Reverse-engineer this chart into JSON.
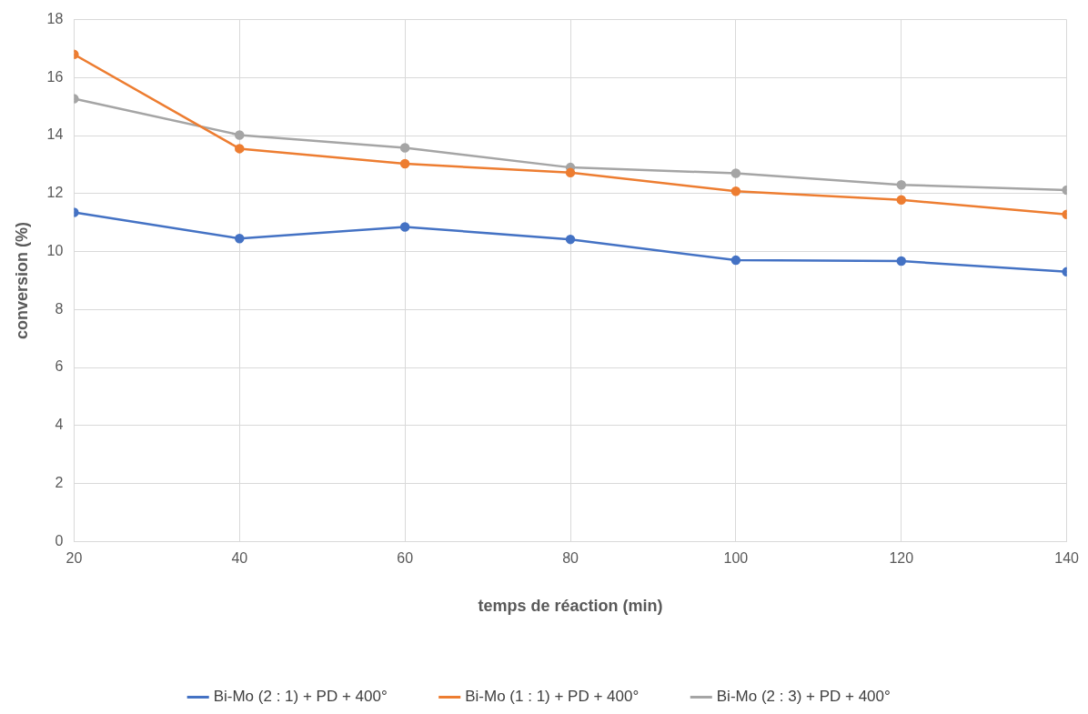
{
  "chart_data": {
    "type": "line",
    "xlabel": "temps de réaction (min)",
    "ylabel": "conversion (%)",
    "x": [
      20,
      40,
      60,
      80,
      100,
      120,
      140
    ],
    "series": [
      {
        "name": "Bi-Mo (2 : 1) + PD + 400°",
        "color": "#4472c4",
        "values": [
          11.35,
          10.45,
          10.85,
          10.42,
          9.7,
          9.67,
          9.3
        ]
      },
      {
        "name": "Bi-Mo (1 : 1) + PD + 400°",
        "color": "#ed7d31",
        "values": [
          16.8,
          13.55,
          13.03,
          12.72,
          12.08,
          11.78,
          11.28
        ]
      },
      {
        "name": "Bi-Mo (2 : 3) + PD + 400°",
        "color": "#a5a5a5",
        "values": [
          15.27,
          14.02,
          13.58,
          12.9,
          12.7,
          12.3,
          12.12
        ]
      }
    ],
    "xlim": [
      20,
      140
    ],
    "xticks": [
      20,
      40,
      60,
      80,
      100,
      120,
      140
    ],
    "ylim": [
      0,
      18
    ],
    "yticks": [
      0,
      2,
      4,
      6,
      8,
      10,
      12,
      14,
      16,
      18
    ],
    "grid": true,
    "legend": "bottom",
    "marker": "circle",
    "line_style": "solid"
  }
}
